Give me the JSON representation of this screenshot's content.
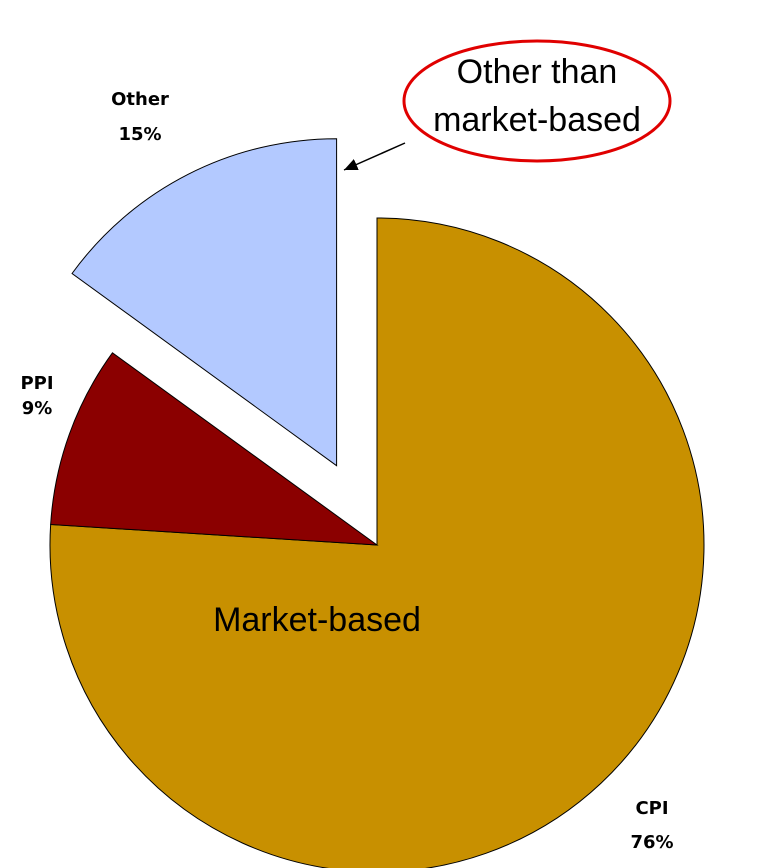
{
  "chart_data": {
    "type": "pie",
    "categories": [
      "CPI",
      "PPI",
      "Other"
    ],
    "values": [
      76,
      9,
      15
    ],
    "value_labels": [
      "76%",
      "9%",
      "15%"
    ],
    "colors": [
      "#c89000",
      "#8b0000",
      "#b3c9ff"
    ],
    "annotations": [
      "Market-based",
      [
        "Other than",
        "market-based"
      ]
    ]
  }
}
